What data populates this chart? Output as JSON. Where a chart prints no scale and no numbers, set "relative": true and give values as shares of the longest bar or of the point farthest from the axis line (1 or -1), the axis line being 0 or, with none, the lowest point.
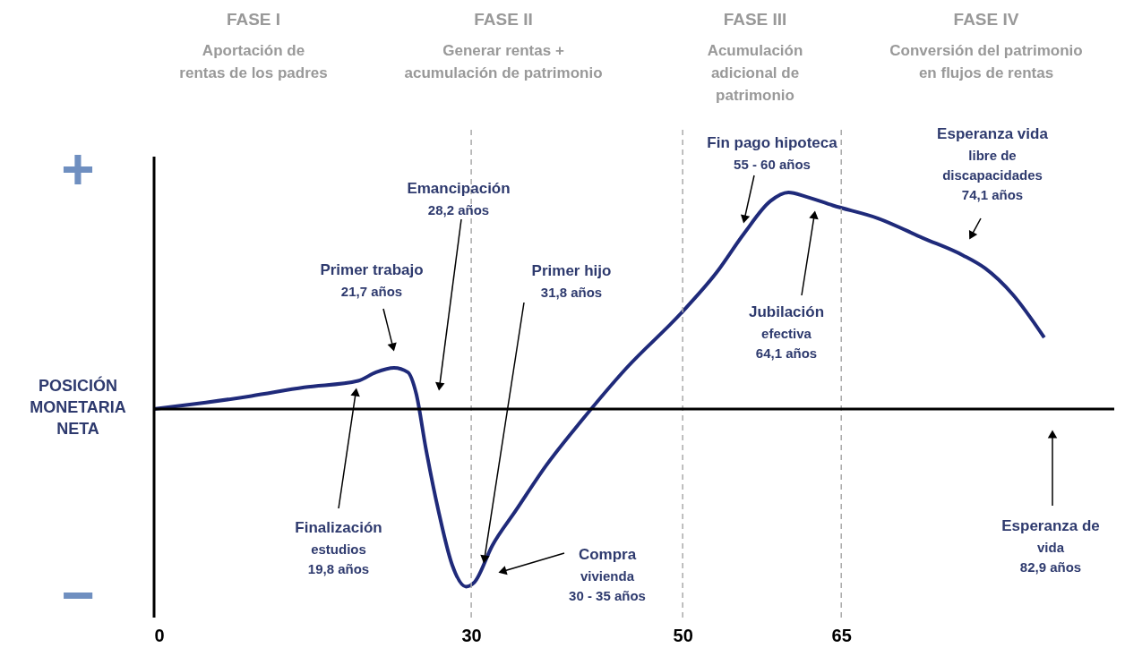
{
  "chart_data": {
    "type": "line",
    "relative": true,
    "ylabel": "POSICIÓN\nMONETARIA\nNETA",
    "x": [
      0,
      4.9,
      9.2,
      14.2,
      19.3,
      21.0,
      22.7,
      24.0,
      24.8,
      25.7,
      26.9,
      28.2,
      29.5,
      30.3,
      32.0,
      34.2,
      37.1,
      40.5,
      44.7,
      49.8,
      53.2,
      55.8,
      58.3,
      60.0,
      61.7,
      64.2,
      68.5,
      72.7,
      76.5,
      78.6,
      81.2,
      84.2
    ],
    "series": [
      {
        "color": "#1f2a7a",
        "values": [
          0,
          0.03,
          0.06,
          0.1,
          0.13,
          0.17,
          0.19,
          0.17,
          0.07,
          -0.18,
          -0.47,
          -0.72,
          -0.82,
          -0.8,
          -0.63,
          -0.47,
          -0.26,
          -0.05,
          0.19,
          0.44,
          0.63,
          0.81,
          0.96,
          1.0,
          0.98,
          0.94,
          0.88,
          0.79,
          0.71,
          0.65,
          0.53,
          0.33
        ]
      }
    ],
    "xlim": [
      0,
      91.5
    ],
    "xticks": [
      0,
      30,
      50,
      65
    ],
    "ref_lines": [
      {
        "axis": "x",
        "value": 30,
        "line_style": "dashed",
        "color": "#aaaaaa"
      },
      {
        "axis": "x",
        "value": 50,
        "line_style": "dashed",
        "color": "#aaaaaa"
      },
      {
        "axis": "x",
        "value": 65,
        "line_style": "dashed",
        "color": "#aaaaaa"
      }
    ],
    "annotations": [
      "FASE I\nAportación de\nrentas de los padres",
      "FASE II\nGenerar rentas +\nacumulación de patrimonio",
      "FASE III\nAcumulación\nadicional de\npatrimonio",
      "FASE IV\nConversión del patrimonio\nen flujos de rentas",
      "+",
      "−",
      "Primer trabajo\n21,7  años",
      "Emancipación\n28,2 años",
      "Primer hijo\n31,8 años",
      "Finalización\nestudios\n19,8 años",
      "Compra\nvivienda\n30 - 35 años",
      "Fin pago hipoteca\n55 - 60 años",
      "Jubilación\nefectiva\n64,1 años",
      "Esperanza vida\nlibre de\ndiscapacidades\n74,1 años",
      "Esperanza de\nvida\n82,9 años"
    ],
    "marker": "none",
    "line_style": "solid"
  }
}
